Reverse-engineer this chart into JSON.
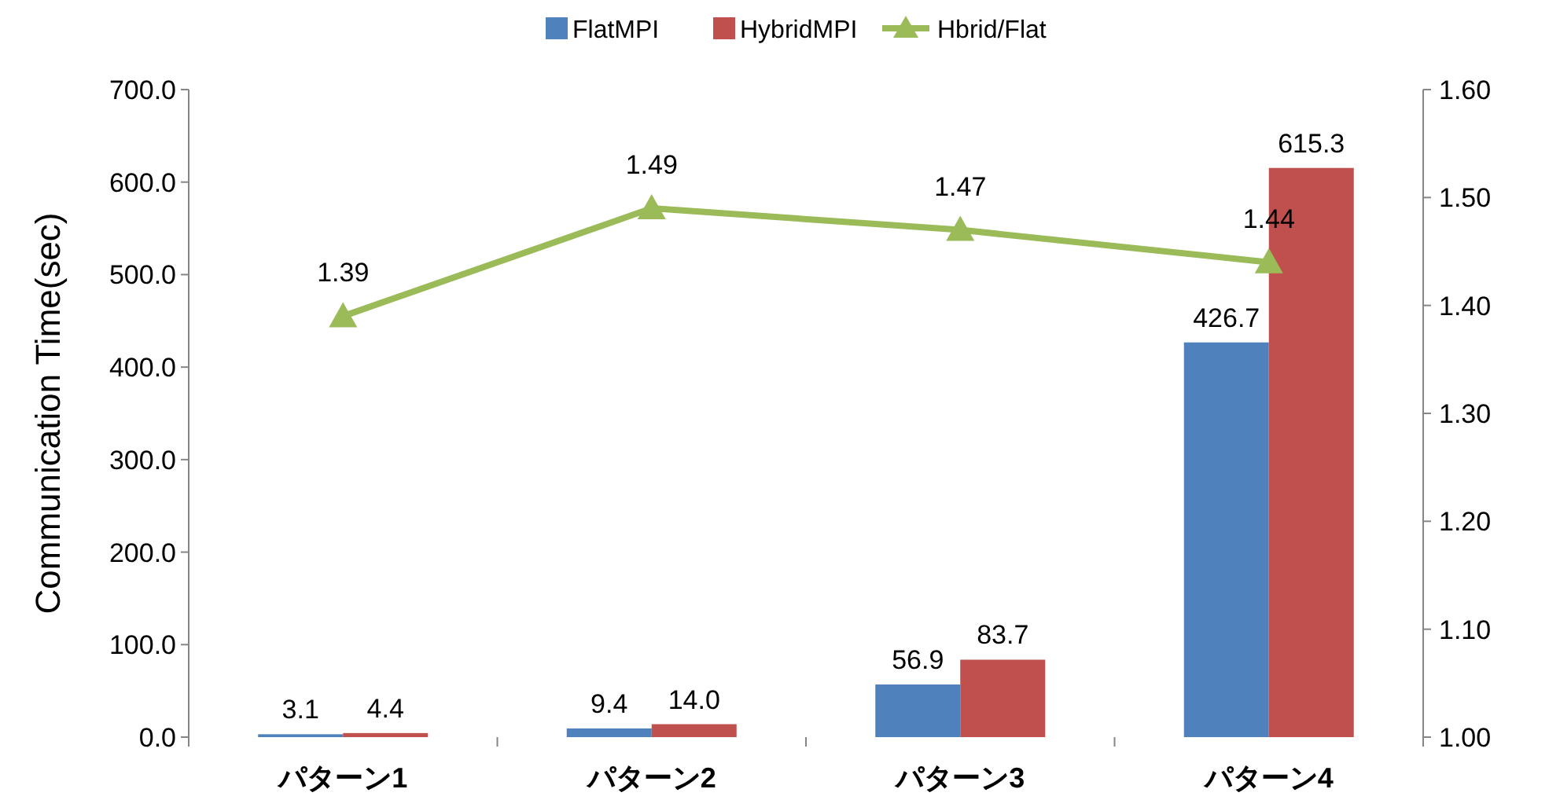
{
  "chart_data": {
    "type": "bar",
    "ylabel": "Communication Time(sec)",
    "categories": [
      "パターン1",
      "パターン2",
      "パターン3",
      "パターン4"
    ],
    "series": [
      {
        "name": "FlatMPI",
        "color": "#4f81bd",
        "values": [
          3.1,
          9.4,
          56.9,
          426.7
        ],
        "value_labels": [
          "3.1",
          "9.4",
          "56.9",
          "426.7"
        ]
      },
      {
        "name": "HybridMPI",
        "color": "#c0504d",
        "values": [
          4.4,
          14.0,
          83.7,
          615.3
        ],
        "value_labels": [
          "4.4",
          "14.0",
          "83.7",
          "615.3"
        ]
      },
      {
        "name": "Hbrid/Flat",
        "type": "line",
        "axis": "y2",
        "color": "#9bbb59",
        "marker": "triangle",
        "values": [
          1.39,
          1.49,
          1.47,
          1.44
        ],
        "value_labels": [
          "1.39",
          "1.49",
          "1.47",
          "1.44"
        ]
      }
    ],
    "ylim": [
      0,
      700
    ],
    "yticks": [
      {
        "value": 0,
        "label": "0.0"
      },
      {
        "value": 100,
        "label": "100.0"
      },
      {
        "value": 200,
        "label": "200.0"
      },
      {
        "value": 300,
        "label": "300.0"
      },
      {
        "value": 400,
        "label": "400.0"
      },
      {
        "value": 500,
        "label": "500.0"
      },
      {
        "value": 600,
        "label": "600.0"
      },
      {
        "value": 700,
        "label": "700.0"
      }
    ],
    "y2lim": [
      1.0,
      1.6
    ],
    "y2ticks": [
      {
        "value": 1.0,
        "label": "1.00"
      },
      {
        "value": 1.1,
        "label": "1.10"
      },
      {
        "value": 1.2,
        "label": "1.20"
      },
      {
        "value": 1.3,
        "label": "1.30"
      },
      {
        "value": 1.4,
        "label": "1.40"
      },
      {
        "value": 1.5,
        "label": "1.50"
      },
      {
        "value": 1.6,
        "label": "1.60"
      }
    ],
    "legend": "top",
    "grid": false
  }
}
